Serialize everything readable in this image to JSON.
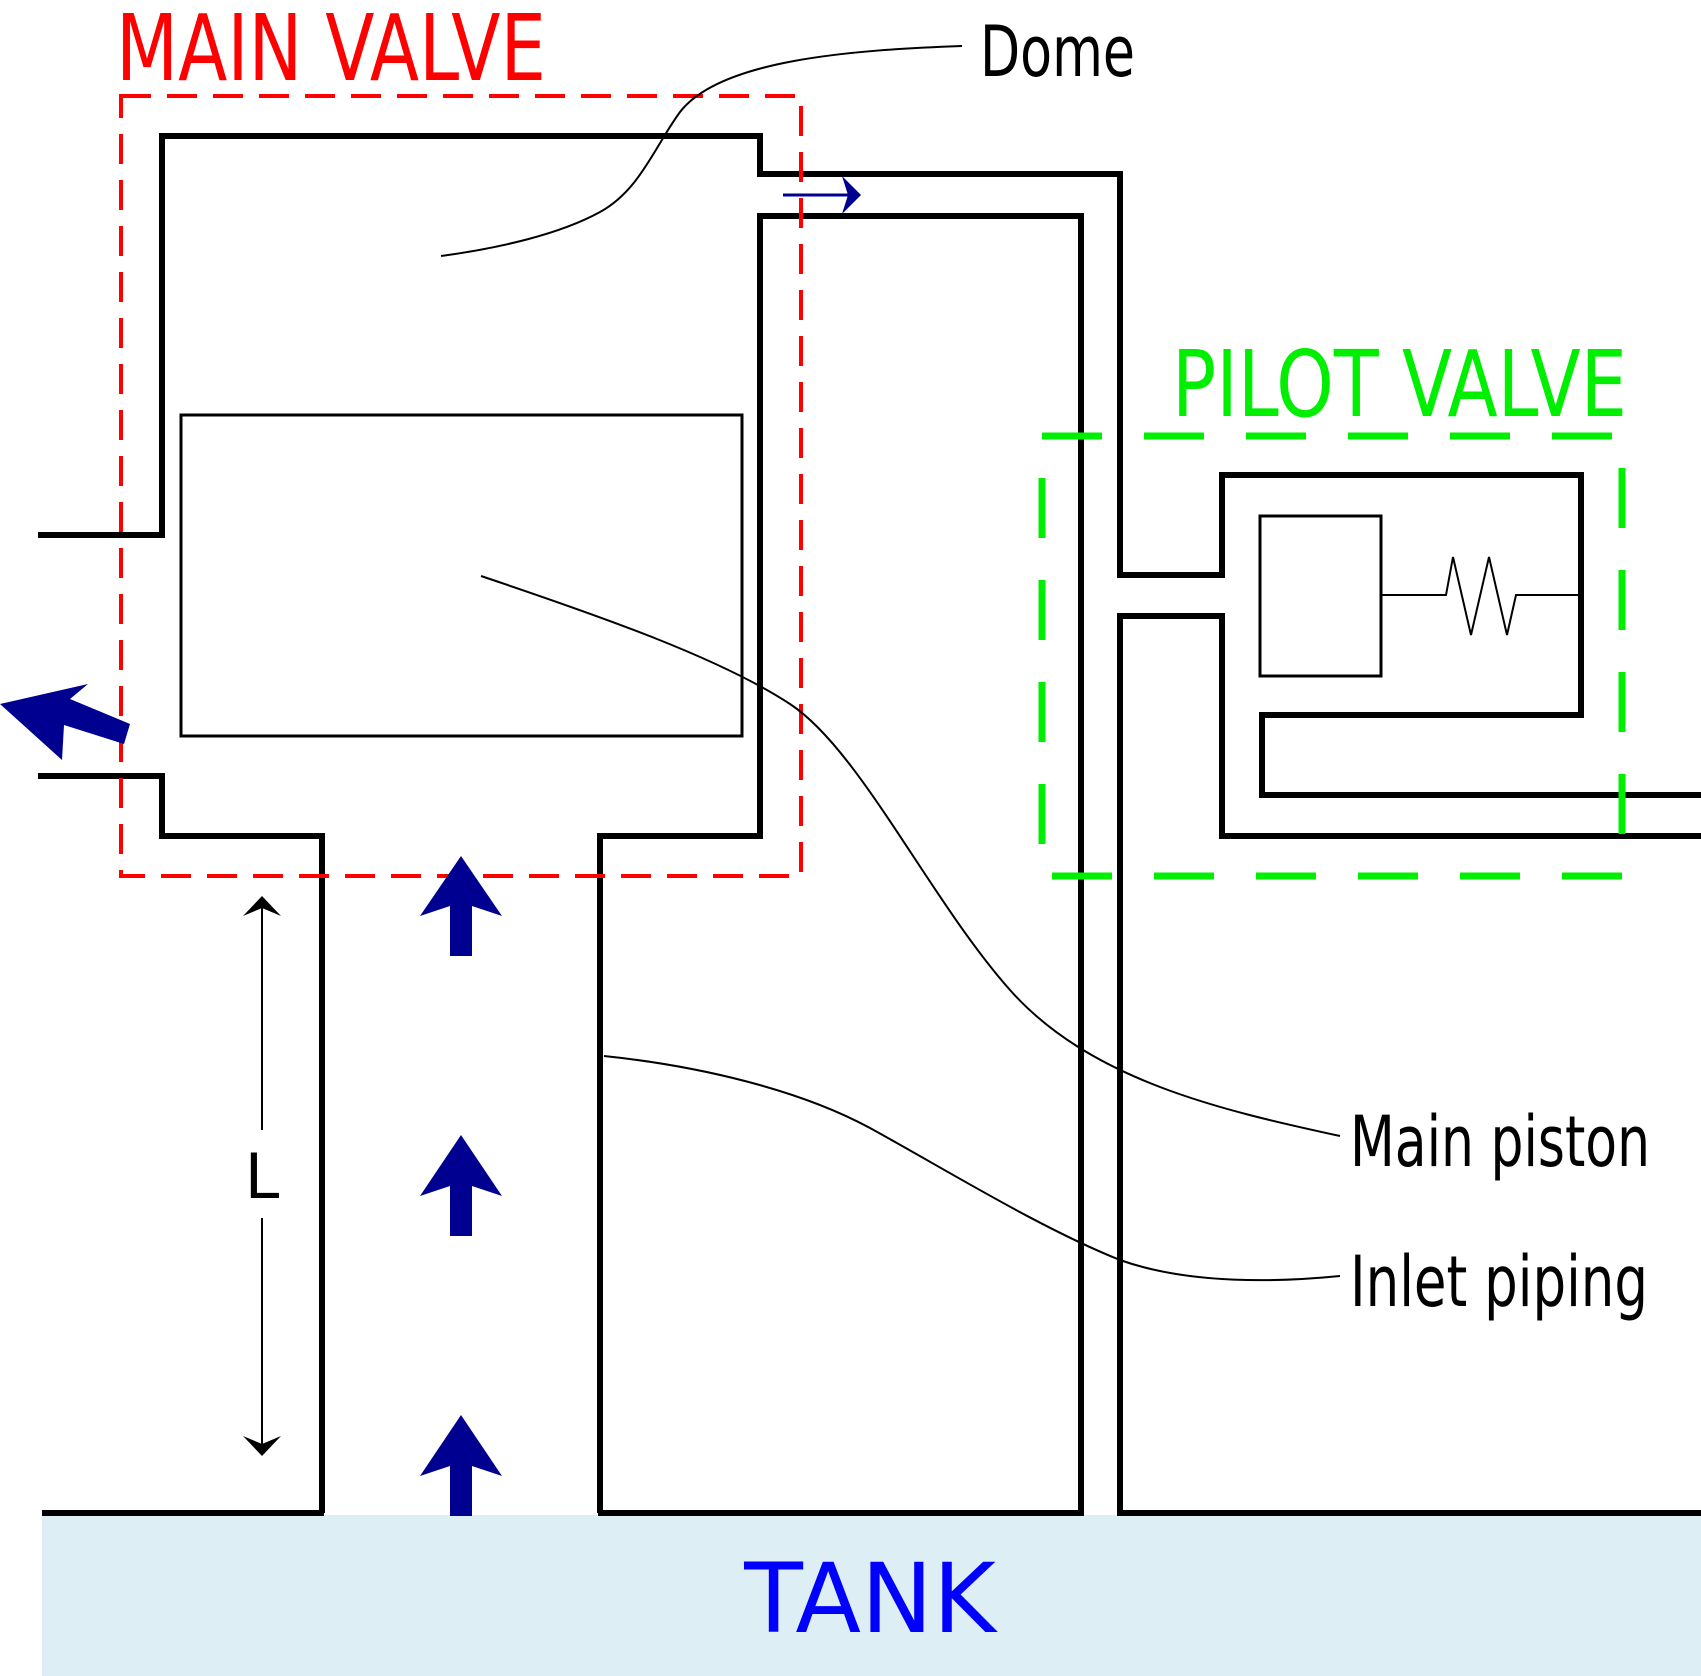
{
  "labels": {
    "main_valve": "MAIN VALVE",
    "pilot_valve": "PILOT VALVE",
    "tank": "TANK",
    "dome": "Dome",
    "main_piston": "Main piston",
    "inlet_piping": "Inlet piping",
    "length": "L"
  },
  "colors": {
    "main_valve": "#ff0000",
    "pilot_valve": "#00ee00",
    "tank_text": "#0000ff",
    "tank_fill": "#ddeef5",
    "flow_arrow": "#000090",
    "structure": "#000000"
  }
}
